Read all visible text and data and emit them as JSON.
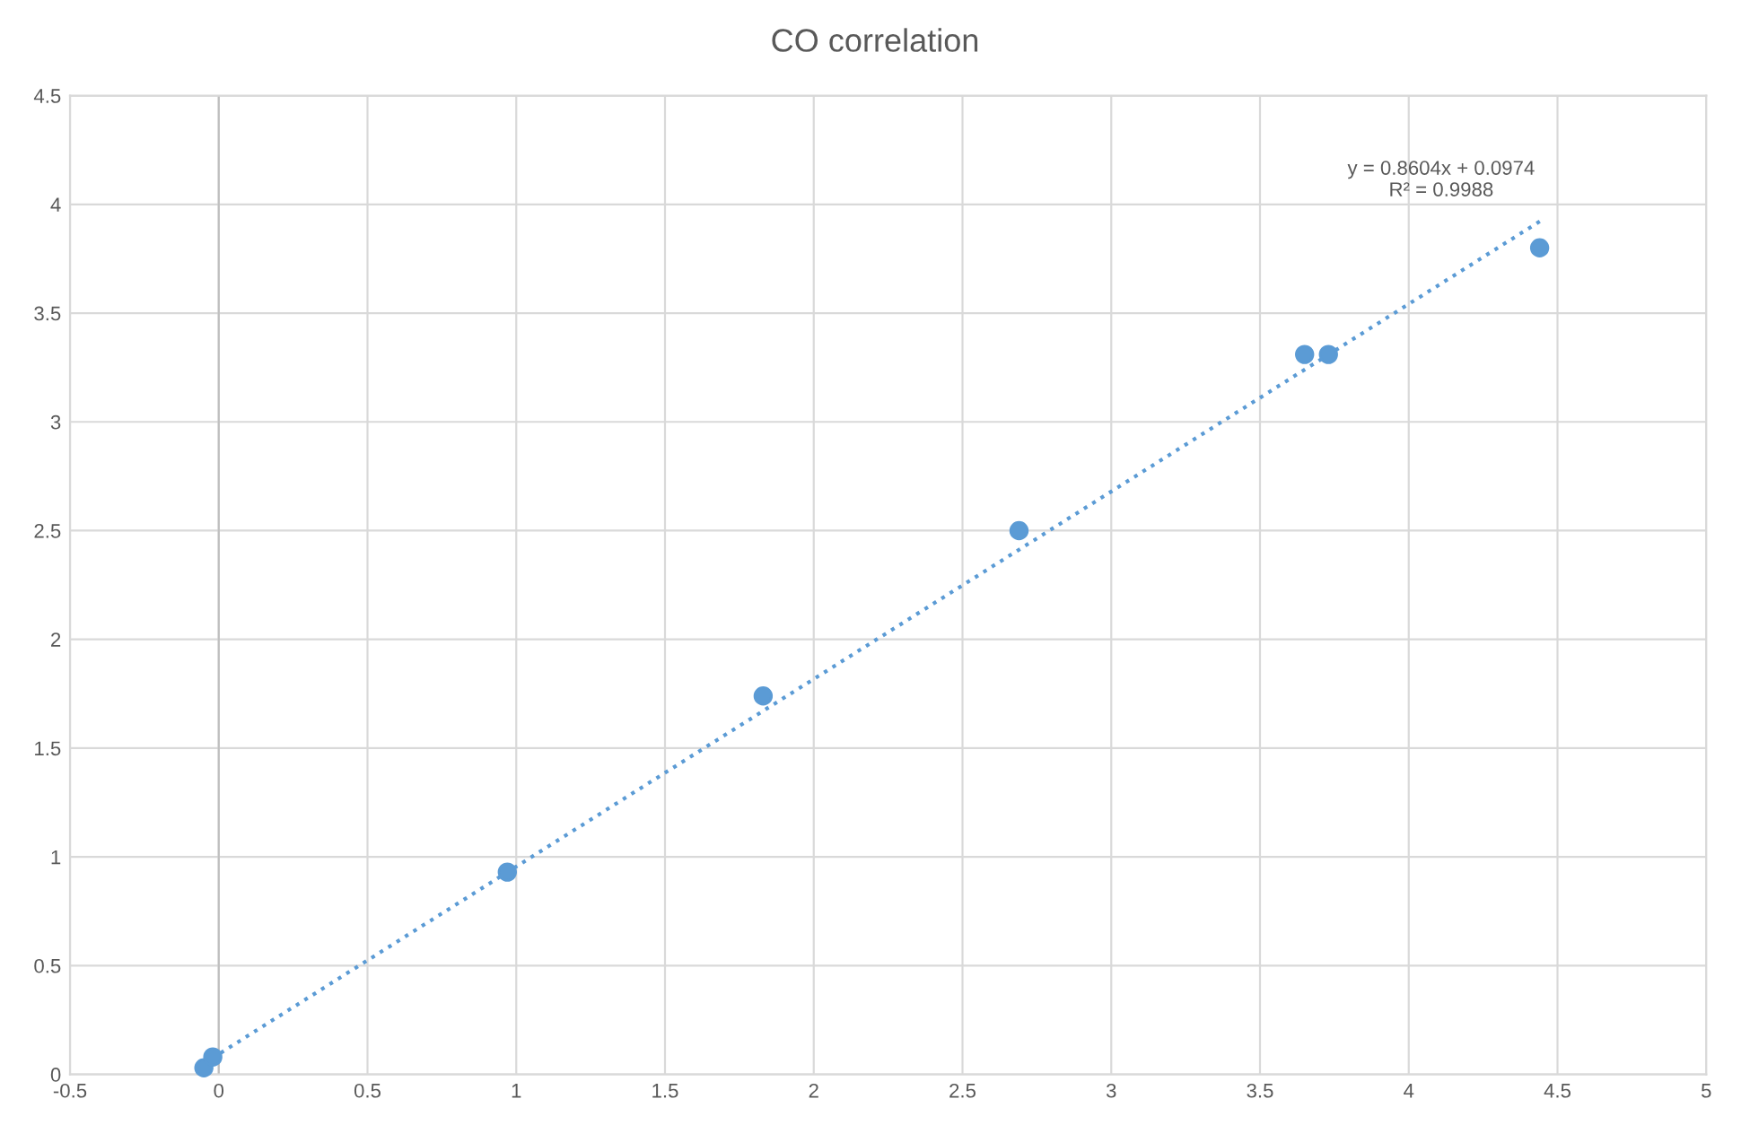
{
  "chart_data": {
    "type": "scatter",
    "title": "CO correlation",
    "series": [
      {
        "color": "#5b9bd5",
        "marker": "circle",
        "x": [
          -0.05,
          -0.02,
          0.97,
          1.83,
          2.69,
          3.65,
          3.73,
          4.44
        ],
        "values": [
          0.03,
          0.08,
          0.93,
          1.74,
          2.5,
          3.31,
          3.31,
          3.8
        ]
      },
      {
        "type": "line",
        "color": "#5b9bd5",
        "line_style": "dotted",
        "marker": "none",
        "x": [
          -0.05,
          4.45
        ],
        "values": [
          0.05,
          3.93
        ]
      }
    ],
    "annotations": [
      "y = 0.8604x + 0.0974",
      "R² = 0.9988"
    ],
    "xlim": [
      -0.5,
      5
    ],
    "xticks": [
      -0.5,
      0,
      0.5,
      1,
      1.5,
      2,
      2.5,
      3,
      3.5,
      4,
      4.5,
      5
    ],
    "ylim": [
      0,
      4.5
    ],
    "yticks": [
      0,
      0.5,
      1,
      1.5,
      2,
      2.5,
      3,
      3.5,
      4,
      4.5
    ],
    "grid": true,
    "legend": false
  }
}
